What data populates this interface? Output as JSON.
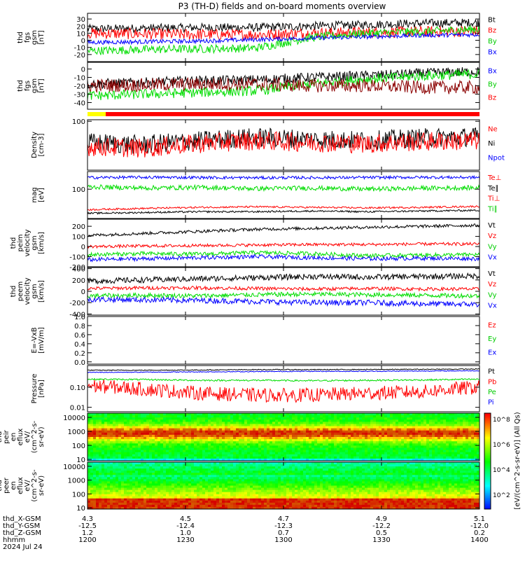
{
  "title": "P3 (TH-D) fields and on-board moments overview",
  "chart_data": {
    "type": "line",
    "x_ticks": [
      "1200",
      "1230",
      "1300",
      "1330",
      "1400"
    ],
    "x_range": [
      "1200",
      "1400"
    ],
    "orbit_rows": [
      {
        "label": "thd_X-GSM",
        "values": [
          "4.3",
          "4.5",
          "4.7",
          "4.9",
          "5.1"
        ]
      },
      {
        "label": "thd_Y-GSM",
        "values": [
          "-12.5",
          "-12.4",
          "-12.3",
          "-12.2",
          "-12.0"
        ]
      },
      {
        "label": "thd_Z-GSM",
        "values": [
          "1.2",
          "1.0",
          "0.7",
          "0.5",
          "0.2"
        ]
      },
      {
        "label": "hhmm",
        "values": [
          "1200",
          "1230",
          "1300",
          "1330",
          "1400"
        ]
      }
    ],
    "date": "2024 Jul 24",
    "panels": [
      {
        "ylabel": [
          "thd",
          "fgs",
          "gsm",
          "[nT]"
        ],
        "ylim": [
          -30,
          38
        ],
        "yticks": [
          {
            "v": 30,
            "t": "30"
          },
          {
            "v": 20,
            "t": "20"
          },
          {
            "v": 10,
            "t": "10"
          },
          {
            "v": 0,
            "t": "0"
          },
          {
            "v": -10,
            "t": "-10"
          },
          {
            "v": -20,
            "t": "-20"
          }
        ],
        "legend": [
          "Bt",
          "Bz",
          "By",
          "Bx"
        ],
        "series": [
          {
            "name": "Bt",
            "color": "#000000",
            "base": [
              16,
              17,
              18,
              18,
              20,
              22,
              24,
              25
            ],
            "noise": 6
          },
          {
            "name": "Bz",
            "color": "#ff0000",
            "base": [
              10,
              9,
              8,
              8,
              10,
              11,
              12,
              13
            ],
            "noise": 8
          },
          {
            "name": "By",
            "color": "#00dd00",
            "base": [
              -15,
              -13,
              -12,
              -11,
              4,
              10,
              12,
              16
            ],
            "noise": 6
          },
          {
            "name": "Bx",
            "color": "#0000ff",
            "base": [
              -3,
              -2,
              -1,
              1,
              3,
              5,
              7,
              8
            ],
            "noise": 3
          }
        ]
      },
      {
        "ylabel": [
          "thd",
          "fgs",
          "gsm",
          "[nT]"
        ],
        "ylim": [
          -48,
          8
        ],
        "yticks": [
          {
            "v": 0,
            "t": "0"
          },
          {
            "v": -10,
            "t": "-10"
          },
          {
            "v": -20,
            "t": "-20"
          },
          {
            "v": -30,
            "t": "-30"
          },
          {
            "v": -40,
            "t": "-40"
          }
        ],
        "legend": [
          "Bx",
          "By",
          "Bz"
        ],
        "series": [
          {
            "name": "Bx",
            "color": "#000000",
            "base": [
              -18,
              -16,
              -14,
              -13,
              -10,
              -8,
              -5,
              -3
            ],
            "noise": 6
          },
          {
            "name": "By",
            "color": "#00dd00",
            "base": [
              -32,
              -30,
              -28,
              -26,
              -18,
              -12,
              -8,
              -6
            ],
            "noise": 6
          },
          {
            "name": "Bz",
            "color": "#8b0000",
            "base": [
              -20,
              -19,
              -18,
              -18,
              -20,
              -20,
              -22,
              -22
            ],
            "noise": 8
          }
        ]
      },
      {
        "ylabel": [
          "Density",
          "[cm-3]"
        ],
        "ylim": [
          0.3,
          120
        ],
        "scale": "log",
        "yticks": [
          {
            "v": 100,
            "t": "100"
          }
        ],
        "legend": [
          "Ne",
          "Ni",
          "Npot"
        ],
        "series": [
          {
            "name": "Ni",
            "color": "#000000",
            "base": [
              8,
              6,
              10,
              15,
              12,
              10,
              14,
              16
            ],
            "noise": 0.5
          },
          {
            "name": "Ne",
            "color": "#ff0000",
            "base": [
              5,
              4,
              7,
              10,
              8,
              7,
              9,
              10
            ],
            "noise": 0.5
          }
        ]
      },
      {
        "ylabel": [
          "mag",
          "[eV]"
        ],
        "ylim": [
          10,
          400
        ],
        "scale": "log",
        "yticks": [
          {
            "v": 100,
            "t": "100"
          }
        ],
        "legend": [
          "Te⊥",
          "Te∥",
          "Ti⊥",
          "Ti∥"
        ],
        "series": [
          {
            "name": "Ti∥",
            "color": "#0000ff",
            "base": [
              250,
              255,
              250,
              245,
              248,
              250,
              255,
              252
            ],
            "noise": 0.05
          },
          {
            "name": "Ti⊥",
            "color": "#00dd00",
            "base": [
              120,
              110,
              115,
              105,
              110,
              100,
              108,
              112
            ],
            "noise": 0.08
          },
          {
            "name": "Te⊥",
            "color": "#ff0000",
            "base": [
              20,
              22,
              24,
              25,
              24,
              23,
              24,
              26
            ],
            "noise": 0.03
          },
          {
            "name": "Te∥",
            "color": "#000000",
            "base": [
              15,
              16,
              17,
              17,
              18,
              17,
              18,
              19
            ],
            "noise": 0.03
          }
        ]
      },
      {
        "ylabel": [
          "thd",
          "peim",
          "velocity",
          "gsm",
          "[km/s]"
        ],
        "ylim": [
          -200,
          270
        ],
        "yticks": [
          {
            "v": 200,
            "t": "200"
          },
          {
            "v": 100,
            "t": "100"
          },
          {
            "v": 0,
            "t": "0"
          },
          {
            "v": -100,
            "t": "-100"
          },
          {
            "v": -200,
            "t": "-200"
          }
        ],
        "legend": [
          "Vt",
          "Vz",
          "Vy",
          "Vx"
        ],
        "series": [
          {
            "name": "Vt",
            "color": "#000000",
            "base": [
              110,
              130,
              150,
              170,
              180,
              190,
              200,
              210
            ],
            "noise": 15
          },
          {
            "name": "Vz",
            "color": "#ff0000",
            "base": [
              0,
              5,
              10,
              15,
              20,
              20,
              25,
              25
            ],
            "noise": 15
          },
          {
            "name": "Vy",
            "color": "#00dd00",
            "base": [
              -80,
              -70,
              -75,
              -60,
              -70,
              -90,
              -85,
              -80
            ],
            "noise": 20
          },
          {
            "name": "Vx",
            "color": "#0000ff",
            "base": [
              -130,
              -120,
              -110,
              -100,
              -110,
              -120,
              -115,
              -120
            ],
            "noise": 20
          }
        ]
      },
      {
        "ylabel": [
          "thd",
          "peem",
          "velocity",
          "gsm",
          "[km/s]"
        ],
        "ylim": [
          -420,
          420
        ],
        "yticks": [
          {
            "v": 400,
            "t": "400"
          },
          {
            "v": 200,
            "t": "200"
          },
          {
            "v": 0,
            "t": "0"
          },
          {
            "v": -200,
            "t": "-200"
          },
          {
            "v": -400,
            "t": "-400"
          }
        ],
        "legend": [
          "Vt",
          "Vz",
          "Vy",
          "Vx"
        ],
        "series": [
          {
            "name": "Vt",
            "color": "#000000",
            "base": [
              180,
              200,
              220,
              240,
              260,
              250,
              260,
              270
            ],
            "noise": 50
          },
          {
            "name": "Vz",
            "color": "#ff0000",
            "base": [
              50,
              60,
              60,
              50,
              40,
              50,
              40,
              40
            ],
            "noise": 30
          },
          {
            "name": "Vy",
            "color": "#00dd00",
            "base": [
              -80,
              -70,
              -80,
              -60,
              -50,
              -60,
              -70,
              -80
            ],
            "noise": 40
          },
          {
            "name": "Vx",
            "color": "#0000ff",
            "base": [
              -140,
              -150,
              -160,
              -180,
              -200,
              -200,
              -220,
              -230
            ],
            "noise": 50
          }
        ]
      },
      {
        "ylabel": [
          "E=-VxB",
          "[mV/m]"
        ],
        "ylim": [
          -0.05,
          1.0
        ],
        "yticks": [
          {
            "v": 1.0,
            "t": "1.0"
          },
          {
            "v": 0.8,
            "t": "0.8"
          },
          {
            "v": 0.6,
            "t": "0.6"
          },
          {
            "v": 0.4,
            "t": "0.4"
          },
          {
            "v": 0.2,
            "t": "0.2"
          },
          {
            "v": 0.0,
            "t": "0.0"
          }
        ],
        "legend": [
          "Ez",
          "Ey",
          "Ex"
        ],
        "series": []
      },
      {
        "ylabel": [
          "Pressure",
          "[nPa]"
        ],
        "ylim": [
          0.006,
          1.2
        ],
        "scale": "log",
        "yticks": [
          {
            "v": 0.1,
            "t": "0.10"
          },
          {
            "v": 0.01,
            "t": "0.01"
          }
        ],
        "legend": [
          "Pt",
          "Pb",
          "Pe",
          "Pi"
        ],
        "series": [
          {
            "name": "Pt",
            "color": "#000000",
            "base": [
              0.7,
              0.7,
              0.72,
              0.75,
              0.75,
              0.76,
              0.78,
              0.8
            ],
            "noise": 0.02
          },
          {
            "name": "Pi",
            "color": "#0000ff",
            "base": [
              0.55,
              0.56,
              0.58,
              0.6,
              0.62,
              0.62,
              0.64,
              0.66
            ],
            "noise": 0.02
          },
          {
            "name": "Pe",
            "color": "#00dd00",
            "base": [
              0.25,
              0.24,
              0.22,
              0.22,
              0.21,
              0.22,
              0.23,
              0.25
            ],
            "noise": 0.04
          },
          {
            "name": "Pb",
            "color": "#ff0000",
            "base": [
              0.12,
              0.08,
              0.05,
              0.04,
              0.04,
              0.05,
              0.06,
              0.1
            ],
            "noise": 0.35
          }
        ]
      },
      {
        "ylabel": [
          "thd",
          "peir",
          "en",
          "eflux",
          "eV/",
          "(cm^2-s-",
          "sr-eV)"
        ],
        "ylim": [
          8,
          20000
        ],
        "scale": "log",
        "yticks": [
          {
            "v": 10000,
            "t": "10000"
          },
          {
            "v": 1000,
            "t": "1000"
          },
          {
            "v": 100,
            "t": "100"
          },
          {
            "v": 10,
            "t": "10"
          }
        ],
        "spectrogram": "ion"
      },
      {
        "ylabel": [
          "thd",
          "peer",
          "en",
          "eflux",
          "eV/",
          "(cm^2-s-",
          "sr-eV)"
        ],
        "ylim": [
          8,
          20000
        ],
        "scale": "log",
        "yticks": [
          {
            "v": 10000,
            "t": "10000"
          },
          {
            "v": 1000,
            "t": "1000"
          },
          {
            "v": 100,
            "t": "100"
          },
          {
            "v": 10,
            "t": "10"
          }
        ],
        "spectrogram": "electron"
      }
    ],
    "colorbar": {
      "label": "[eV/(cm^2-s-sr-eV)] (All Qs)",
      "ticks": [
        "10^8",
        "10^6",
        "10^4",
        "10^2"
      ]
    }
  }
}
